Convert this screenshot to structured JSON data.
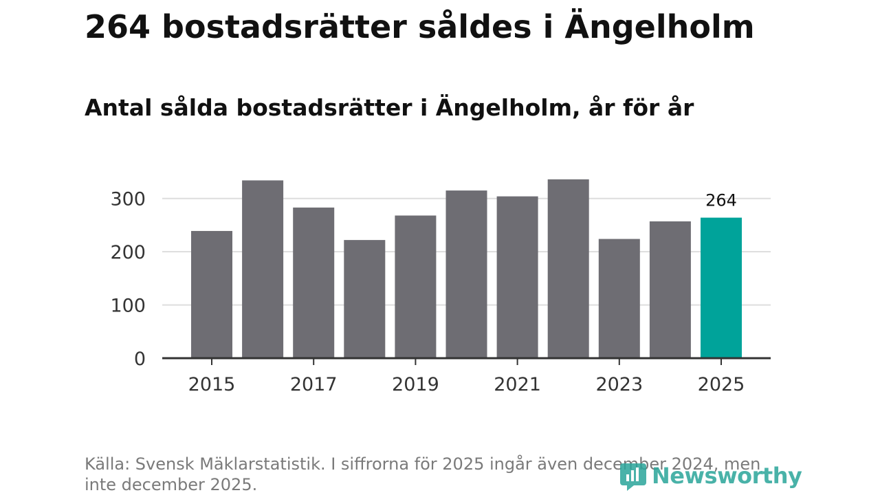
{
  "header": {
    "title": "264 bostadsrätter såldes i Ängelholm",
    "subtitle": "Antal sålda bostadsrätter i Ängelholm, år för år"
  },
  "footer": {
    "source": "Källa: Svensk Mäklarstatistik. I siffrorna för 2025 ingår även december 2024, men inte december 2025.",
    "brand": "Newsworthy"
  },
  "colors": {
    "bar": "#6e6d73",
    "highlight": "#00a39a",
    "grid": "#dddddd",
    "axis": "#333333",
    "brand": "#2aa59a"
  },
  "chart_data": {
    "type": "bar",
    "title": "Antal sålda bostadsrätter i Ängelholm, år för år",
    "xlabel": "",
    "ylabel": "",
    "categories": [
      2015,
      2016,
      2017,
      2018,
      2019,
      2020,
      2021,
      2022,
      2023,
      2024,
      2025
    ],
    "values": [
      239,
      334,
      283,
      222,
      268,
      315,
      304,
      336,
      224,
      257,
      264
    ],
    "ylim": [
      0,
      350
    ],
    "yticks": [
      0,
      100,
      200,
      300
    ],
    "xticks": [
      2015,
      2017,
      2019,
      2021,
      2023,
      2025
    ],
    "highlight_category": 2025,
    "value_label": "264",
    "grid": true,
    "legend": "none"
  }
}
